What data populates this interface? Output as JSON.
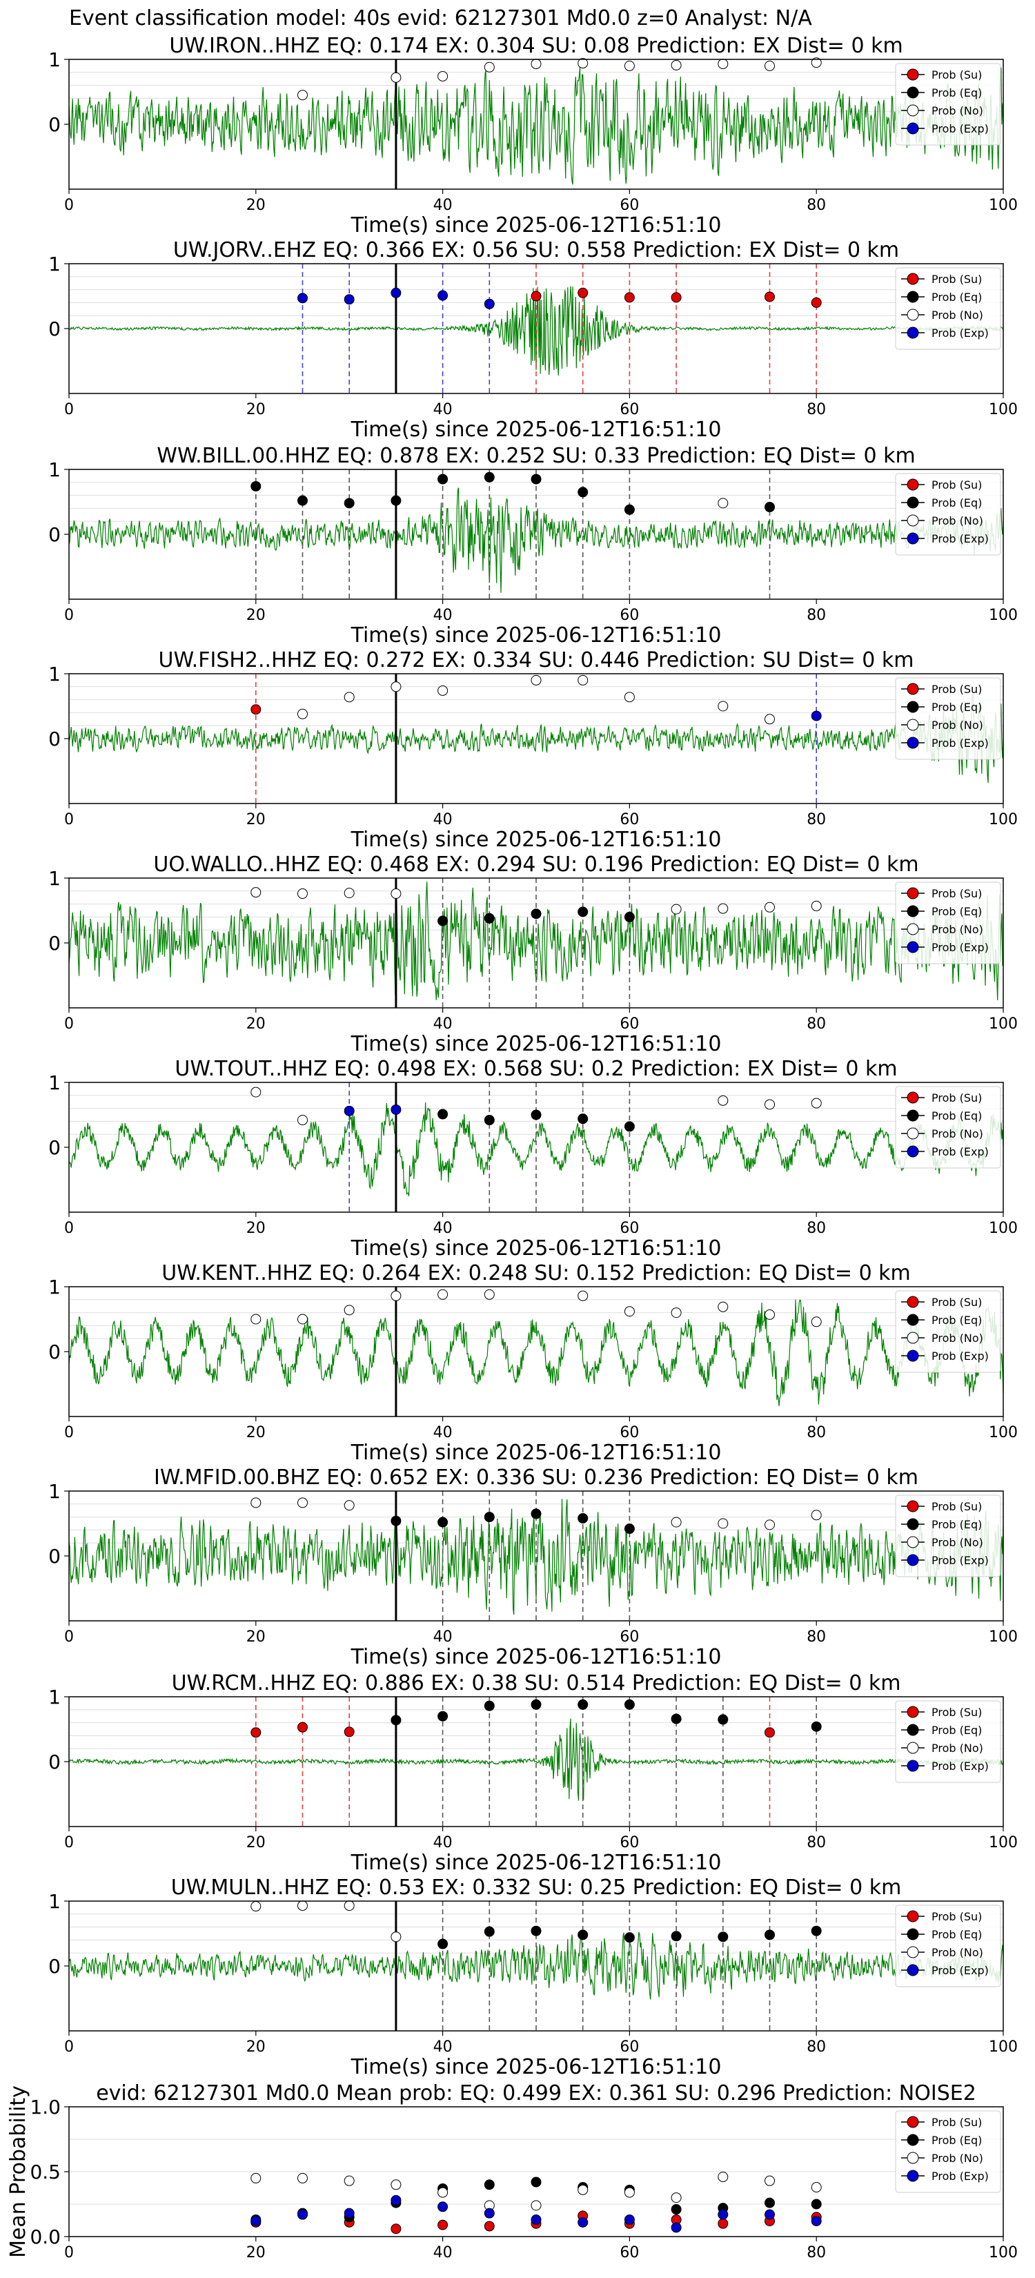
{
  "header": {
    "title": "Event classification model: 40s evid: 62127301 Md0.0 z=0 Analyst: N/A"
  },
  "legend_labels": [
    "Prob (Su)",
    "Prob (Eq)",
    "Prob (No)",
    "Prob (Exp)"
  ],
  "legend_colors": [
    "#e00000",
    "#000000",
    "#ffffff",
    "#0000cc"
  ],
  "trace_color": "#008000",
  "x_tick_labels": [
    "0",
    "20",
    "40",
    "60",
    "80",
    "100"
  ],
  "y_tick_labels": [
    "1",
    "0"
  ],
  "xlabel": "Time(s) since 2025-06-12T16:51:10",
  "chart_data": [
    {
      "type": "line",
      "title": "UW.IRON..HHZ   EQ: 0.174  EX: 0.304  SU: 0.08   Prediction: EX    Dist= 0 km",
      "xlim": [
        0,
        100
      ],
      "ylim": [
        -1,
        1
      ],
      "trace_style": "noise",
      "trace_amp": 0.38,
      "burst_center": 55,
      "burst_width": 18,
      "burst_amp": 0.35,
      "red_lines": [],
      "blue_lines": [],
      "gray_lines": [],
      "points": [
        {
          "x": 25,
          "y": 0.45,
          "cls": "No"
        },
        {
          "x": 35,
          "y": 0.72,
          "cls": "No"
        },
        {
          "x": 40,
          "y": 0.74,
          "cls": "No"
        },
        {
          "x": 45,
          "y": 0.88,
          "cls": "No"
        },
        {
          "x": 50,
          "y": 0.93,
          "cls": "No"
        },
        {
          "x": 55,
          "y": 0.94,
          "cls": "No"
        },
        {
          "x": 60,
          "y": 0.9,
          "cls": "No"
        },
        {
          "x": 65,
          "y": 0.91,
          "cls": "No"
        },
        {
          "x": 70,
          "y": 0.93,
          "cls": "No"
        },
        {
          "x": 75,
          "y": 0.9,
          "cls": "No"
        },
        {
          "x": 80,
          "y": 0.95,
          "cls": "No"
        }
      ]
    },
    {
      "type": "line",
      "title": "UW.JORV..EHZ   EQ: 0.366  EX: 0.56  SU: 0.558   Prediction: EX    Dist= 0 km",
      "xlim": [
        0,
        100
      ],
      "ylim": [
        -1,
        1
      ],
      "trace_style": "flat",
      "trace_amp": 0.02,
      "burst_center": 52,
      "burst_width": 5,
      "burst_amp": 0.75,
      "red_lines": [
        50,
        55,
        60,
        65,
        75,
        80
      ],
      "blue_lines": [
        25,
        30,
        40,
        45
      ],
      "gray_lines": [],
      "points": [
        {
          "x": 25,
          "y": 0.47,
          "cls": "Exp"
        },
        {
          "x": 30,
          "y": 0.45,
          "cls": "Exp"
        },
        {
          "x": 35,
          "y": 0.55,
          "cls": "Exp"
        },
        {
          "x": 40,
          "y": 0.51,
          "cls": "Exp"
        },
        {
          "x": 45,
          "y": 0.38,
          "cls": "Exp"
        },
        {
          "x": 50,
          "y": 0.5,
          "cls": "Su"
        },
        {
          "x": 55,
          "y": 0.55,
          "cls": "Su"
        },
        {
          "x": 60,
          "y": 0.48,
          "cls": "Su"
        },
        {
          "x": 65,
          "y": 0.48,
          "cls": "Su"
        },
        {
          "x": 75,
          "y": 0.49,
          "cls": "Su"
        },
        {
          "x": 80,
          "y": 0.4,
          "cls": "Su"
        }
      ]
    },
    {
      "type": "line",
      "title": "WW.BILL.00.HHZ   EQ: 0.878  EX: 0.252  SU: 0.33   Prediction: EQ    Dist= 0 km",
      "xlim": [
        0,
        100
      ],
      "ylim": [
        -1,
        1
      ],
      "trace_style": "noise",
      "trace_amp": 0.18,
      "burst_center": 45,
      "burst_width": 5,
      "burst_amp": 0.55,
      "red_lines": [],
      "blue_lines": [],
      "gray_lines": [
        20,
        25,
        30,
        40,
        45,
        50,
        55,
        60,
        75
      ],
      "points": [
        {
          "x": 20,
          "y": 0.74,
          "cls": "Eq"
        },
        {
          "x": 25,
          "y": 0.52,
          "cls": "Eq"
        },
        {
          "x": 30,
          "y": 0.48,
          "cls": "Eq"
        },
        {
          "x": 35,
          "y": 0.52,
          "cls": "Eq"
        },
        {
          "x": 40,
          "y": 0.85,
          "cls": "Eq"
        },
        {
          "x": 45,
          "y": 0.88,
          "cls": "Eq"
        },
        {
          "x": 50,
          "y": 0.85,
          "cls": "Eq"
        },
        {
          "x": 55,
          "y": 0.65,
          "cls": "Eq"
        },
        {
          "x": 60,
          "y": 0.38,
          "cls": "Eq"
        },
        {
          "x": 70,
          "y": 0.48,
          "cls": "No"
        },
        {
          "x": 75,
          "y": 0.42,
          "cls": "Eq"
        }
      ]
    },
    {
      "type": "line",
      "title": "UW.FISH2..HHZ   EQ: 0.272  EX: 0.334  SU: 0.446   Prediction: SU    Dist= 0 km",
      "xlim": [
        0,
        100
      ],
      "ylim": [
        -1,
        1
      ],
      "trace_style": "noise",
      "trace_amp": 0.16,
      "burst_center": 96,
      "burst_width": 4,
      "burst_amp": 0.4,
      "red_lines": [
        20
      ],
      "blue_lines": [
        80
      ],
      "gray_lines": [],
      "points": [
        {
          "x": 20,
          "y": 0.45,
          "cls": "Su"
        },
        {
          "x": 25,
          "y": 0.38,
          "cls": "No"
        },
        {
          "x": 30,
          "y": 0.64,
          "cls": "No"
        },
        {
          "x": 35,
          "y": 0.8,
          "cls": "No"
        },
        {
          "x": 40,
          "y": 0.74,
          "cls": "No"
        },
        {
          "x": 50,
          "y": 0.9,
          "cls": "No"
        },
        {
          "x": 55,
          "y": 0.9,
          "cls": "No"
        },
        {
          "x": 60,
          "y": 0.64,
          "cls": "No"
        },
        {
          "x": 70,
          "y": 0.5,
          "cls": "No"
        },
        {
          "x": 75,
          "y": 0.3,
          "cls": "No"
        },
        {
          "x": 80,
          "y": 0.35,
          "cls": "Exp"
        }
      ]
    },
    {
      "type": "line",
      "title": "UO.WALLO..HHZ   EQ: 0.468  EX: 0.294  SU: 0.196   Prediction: EQ    Dist= 0 km",
      "xlim": [
        0,
        100
      ],
      "ylim": [
        -1,
        1
      ],
      "trace_style": "noise",
      "trace_amp": 0.45,
      "burst_center": 38,
      "burst_width": 6,
      "burst_amp": 0.3,
      "red_lines": [],
      "blue_lines": [],
      "gray_lines": [
        40,
        45,
        50,
        55,
        60
      ],
      "points": [
        {
          "x": 20,
          "y": 0.78,
          "cls": "No"
        },
        {
          "x": 25,
          "y": 0.76,
          "cls": "No"
        },
        {
          "x": 30,
          "y": 0.77,
          "cls": "No"
        },
        {
          "x": 35,
          "y": 0.76,
          "cls": "No"
        },
        {
          "x": 40,
          "y": 0.34,
          "cls": "Eq"
        },
        {
          "x": 45,
          "y": 0.38,
          "cls": "Eq"
        },
        {
          "x": 50,
          "y": 0.45,
          "cls": "Eq"
        },
        {
          "x": 55,
          "y": 0.48,
          "cls": "Eq"
        },
        {
          "x": 60,
          "y": 0.4,
          "cls": "Eq"
        },
        {
          "x": 65,
          "y": 0.52,
          "cls": "No"
        },
        {
          "x": 70,
          "y": 0.53,
          "cls": "No"
        },
        {
          "x": 75,
          "y": 0.55,
          "cls": "No"
        },
        {
          "x": 80,
          "y": 0.57,
          "cls": "No"
        }
      ]
    },
    {
      "type": "line",
      "title": "UW.TOUT..HHZ   EQ: 0.498  EX: 0.568  SU: 0.2   Prediction: EX    Dist= 0 km",
      "xlim": [
        0,
        100
      ],
      "ylim": [
        -1,
        1
      ],
      "trace_style": "wave",
      "trace_amp": 0.35,
      "burst_center": 36,
      "burst_width": 6,
      "burst_amp": 0.35,
      "red_lines": [],
      "blue_lines": [
        30
      ],
      "gray_lines": [
        45,
        50,
        55,
        60
      ],
      "points": [
        {
          "x": 20,
          "y": 0.85,
          "cls": "No"
        },
        {
          "x": 25,
          "y": 0.42,
          "cls": "No"
        },
        {
          "x": 30,
          "y": 0.56,
          "cls": "Exp"
        },
        {
          "x": 35,
          "y": 0.58,
          "cls": "Exp"
        },
        {
          "x": 40,
          "y": 0.51,
          "cls": "Eq"
        },
        {
          "x": 45,
          "y": 0.42,
          "cls": "Eq"
        },
        {
          "x": 50,
          "y": 0.5,
          "cls": "Eq"
        },
        {
          "x": 55,
          "y": 0.44,
          "cls": "Eq"
        },
        {
          "x": 60,
          "y": 0.32,
          "cls": "Eq"
        },
        {
          "x": 70,
          "y": 0.72,
          "cls": "No"
        },
        {
          "x": 75,
          "y": 0.66,
          "cls": "No"
        },
        {
          "x": 80,
          "y": 0.68,
          "cls": "No"
        }
      ]
    },
    {
      "type": "line",
      "title": "UW.KENT..HHZ   EQ: 0.264  EX: 0.248  SU: 0.152   Prediction: EQ    Dist= 0 km",
      "xlim": [
        0,
        100
      ],
      "ylim": [
        -1,
        1
      ],
      "trace_style": "wave",
      "trace_amp": 0.5,
      "burst_center": 78,
      "burst_width": 5,
      "burst_amp": 0.4,
      "red_lines": [],
      "blue_lines": [],
      "gray_lines": [],
      "points": [
        {
          "x": 20,
          "y": 0.5,
          "cls": "No"
        },
        {
          "x": 25,
          "y": 0.5,
          "cls": "No"
        },
        {
          "x": 30,
          "y": 0.64,
          "cls": "No"
        },
        {
          "x": 35,
          "y": 0.86,
          "cls": "No"
        },
        {
          "x": 40,
          "y": 0.88,
          "cls": "No"
        },
        {
          "x": 45,
          "y": 0.88,
          "cls": "No"
        },
        {
          "x": 55,
          "y": 0.86,
          "cls": "No"
        },
        {
          "x": 60,
          "y": 0.62,
          "cls": "No"
        },
        {
          "x": 65,
          "y": 0.6,
          "cls": "No"
        },
        {
          "x": 70,
          "y": 0.69,
          "cls": "No"
        },
        {
          "x": 75,
          "y": 0.57,
          "cls": "No"
        },
        {
          "x": 80,
          "y": 0.46,
          "cls": "No"
        }
      ]
    },
    {
      "type": "line",
      "title": "IW.MFID.00.BHZ   EQ: 0.652  EX: 0.336  SU: 0.236   Prediction: EQ    Dist= 0 km",
      "xlim": [
        0,
        100
      ],
      "ylim": [
        -1,
        1
      ],
      "trace_style": "noise",
      "trace_amp": 0.42,
      "burst_center": 50,
      "burst_width": 10,
      "burst_amp": 0.3,
      "red_lines": [],
      "blue_lines": [],
      "gray_lines": [
        40,
        45,
        50,
        55,
        60
      ],
      "points": [
        {
          "x": 20,
          "y": 0.82,
          "cls": "No"
        },
        {
          "x": 25,
          "y": 0.82,
          "cls": "No"
        },
        {
          "x": 30,
          "y": 0.78,
          "cls": "No"
        },
        {
          "x": 35,
          "y": 0.54,
          "cls": "Eq"
        },
        {
          "x": 40,
          "y": 0.52,
          "cls": "Eq"
        },
        {
          "x": 45,
          "y": 0.6,
          "cls": "Eq"
        },
        {
          "x": 50,
          "y": 0.65,
          "cls": "Eq"
        },
        {
          "x": 55,
          "y": 0.58,
          "cls": "Eq"
        },
        {
          "x": 60,
          "y": 0.42,
          "cls": "Eq"
        },
        {
          "x": 65,
          "y": 0.52,
          "cls": "No"
        },
        {
          "x": 70,
          "y": 0.5,
          "cls": "No"
        },
        {
          "x": 75,
          "y": 0.48,
          "cls": "No"
        },
        {
          "x": 80,
          "y": 0.63,
          "cls": "No"
        }
      ]
    },
    {
      "type": "line",
      "title": "UW.RCM..HHZ   EQ: 0.886  EX: 0.38  SU: 0.514   Prediction: EQ    Dist= 0 km",
      "xlim": [
        0,
        100
      ],
      "ylim": [
        -1,
        1
      ],
      "trace_style": "flat",
      "trace_amp": 0.03,
      "burst_center": 54,
      "burst_width": 2,
      "burst_amp": 0.75,
      "red_lines": [
        20,
        25,
        30,
        75
      ],
      "blue_lines": [],
      "gray_lines": [
        40,
        45,
        50,
        55,
        60,
        65,
        70,
        80
      ],
      "points": [
        {
          "x": 20,
          "y": 0.45,
          "cls": "Su"
        },
        {
          "x": 25,
          "y": 0.53,
          "cls": "Su"
        },
        {
          "x": 30,
          "y": 0.46,
          "cls": "Su"
        },
        {
          "x": 35,
          "y": 0.64,
          "cls": "Eq"
        },
        {
          "x": 40,
          "y": 0.7,
          "cls": "Eq"
        },
        {
          "x": 45,
          "y": 0.86,
          "cls": "Eq"
        },
        {
          "x": 50,
          "y": 0.88,
          "cls": "Eq"
        },
        {
          "x": 55,
          "y": 0.88,
          "cls": "Eq"
        },
        {
          "x": 60,
          "y": 0.88,
          "cls": "Eq"
        },
        {
          "x": 65,
          "y": 0.66,
          "cls": "Eq"
        },
        {
          "x": 70,
          "y": 0.65,
          "cls": "Eq"
        },
        {
          "x": 75,
          "y": 0.45,
          "cls": "Su"
        },
        {
          "x": 80,
          "y": 0.54,
          "cls": "Eq"
        }
      ]
    },
    {
      "type": "line",
      "title": "UW.MULN..HHZ   EQ: 0.53  EX: 0.332  SU: 0.25   Prediction: EQ    Dist= 0 km",
      "xlim": [
        0,
        100
      ],
      "ylim": [
        -1,
        1
      ],
      "trace_style": "noise",
      "trace_amp": 0.16,
      "burst_center": 60,
      "burst_width": 15,
      "burst_amp": 0.25,
      "red_lines": [],
      "blue_lines": [],
      "gray_lines": [
        40,
        45,
        50,
        55,
        60,
        65,
        70,
        75,
        80
      ],
      "points": [
        {
          "x": 20,
          "y": 0.92,
          "cls": "No"
        },
        {
          "x": 25,
          "y": 0.93,
          "cls": "No"
        },
        {
          "x": 30,
          "y": 0.93,
          "cls": "No"
        },
        {
          "x": 35,
          "y": 0.45,
          "cls": "No"
        },
        {
          "x": 40,
          "y": 0.34,
          "cls": "Eq"
        },
        {
          "x": 45,
          "y": 0.53,
          "cls": "Eq"
        },
        {
          "x": 50,
          "y": 0.54,
          "cls": "Eq"
        },
        {
          "x": 55,
          "y": 0.48,
          "cls": "Eq"
        },
        {
          "x": 60,
          "y": 0.44,
          "cls": "Eq"
        },
        {
          "x": 65,
          "y": 0.46,
          "cls": "Eq"
        },
        {
          "x": 70,
          "y": 0.45,
          "cls": "Eq"
        },
        {
          "x": 75,
          "y": 0.48,
          "cls": "Eq"
        },
        {
          "x": 80,
          "y": 0.54,
          "cls": "Eq"
        }
      ]
    },
    {
      "type": "scatter",
      "title": "evid: 62127301  Md0.0   Mean prob:   EQ: 0.499  EX: 0.361  SU: 0.296   Prediction: NOISE2",
      "ylabel": "Mean Probability",
      "xlim": [
        0,
        100
      ],
      "ylim": [
        0,
        1
      ],
      "x_ticks": [
        "0",
        "20",
        "40",
        "60",
        "80",
        "100"
      ],
      "y_ticks": [
        "0.0",
        "0.5",
        "1.0"
      ],
      "series": [
        {
          "name": "Prob (Su)",
          "x": [
            20,
            25,
            30,
            35,
            40,
            45,
            50,
            55,
            60,
            65,
            70,
            75,
            80
          ],
          "values": [
            0.11,
            0.17,
            0.11,
            0.06,
            0.09,
            0.08,
            0.1,
            0.16,
            0.1,
            0.13,
            0.1,
            0.12,
            0.15
          ]
        },
        {
          "name": "Prob (Eq)",
          "x": [
            20,
            25,
            30,
            35,
            40,
            45,
            50,
            55,
            60,
            65,
            70,
            75,
            80
          ],
          "values": [
            0.13,
            0.18,
            0.15,
            0.26,
            0.37,
            0.4,
            0.42,
            0.38,
            0.36,
            0.21,
            0.22,
            0.26,
            0.25
          ]
        },
        {
          "name": "Prob (No)",
          "x": [
            20,
            25,
            30,
            35,
            40,
            45,
            50,
            55,
            60,
            65,
            70,
            75,
            80
          ],
          "values": [
            0.45,
            0.45,
            0.43,
            0.4,
            0.34,
            0.24,
            0.24,
            0.36,
            0.34,
            0.3,
            0.46,
            0.43,
            0.38
          ]
        },
        {
          "name": "Prob (Exp)",
          "x": [
            20,
            25,
            30,
            35,
            40,
            45,
            50,
            55,
            60,
            65,
            70,
            75,
            80
          ],
          "values": [
            0.12,
            0.17,
            0.18,
            0.28,
            0.23,
            0.18,
            0.13,
            0.11,
            0.13,
            0.07,
            0.17,
            0.17,
            0.12
          ]
        }
      ]
    }
  ]
}
